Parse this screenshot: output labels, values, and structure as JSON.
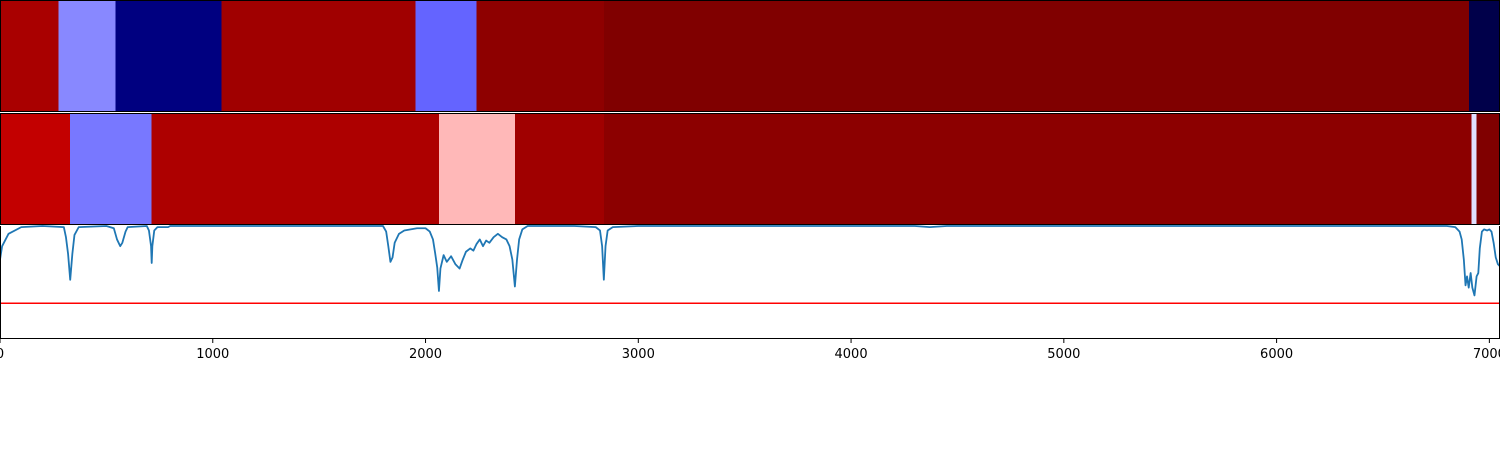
{
  "chart_data": [
    {
      "type": "heatmap",
      "xlim": [
        0,
        7050
      ],
      "segments": [
        {
          "x0": 0,
          "x1": 275,
          "color": "#a90000"
        },
        {
          "x0": 275,
          "x1": 542,
          "color": "#8888ff"
        },
        {
          "x0": 542,
          "x1": 1040,
          "color": "#000080"
        },
        {
          "x0": 1040,
          "x1": 1953,
          "color": "#a00000"
        },
        {
          "x0": 1953,
          "x1": 2240,
          "color": "#6464ff"
        },
        {
          "x0": 2240,
          "x1": 2838,
          "color": "#8e0000"
        },
        {
          "x0": 2838,
          "x1": 6905,
          "color": "#800000"
        },
        {
          "x0": 6905,
          "x1": 7050,
          "color": "#00004a"
        }
      ]
    },
    {
      "type": "heatmap",
      "xlim": [
        0,
        7050
      ],
      "segments": [
        {
          "x0": 0,
          "x1": 330,
          "color": "#c30000"
        },
        {
          "x0": 330,
          "x1": 713,
          "color": "#7878ff"
        },
        {
          "x0": 713,
          "x1": 2063,
          "color": "#ad0000"
        },
        {
          "x0": 2063,
          "x1": 2420,
          "color": "#ffb8b8"
        },
        {
          "x0": 2420,
          "x1": 2838,
          "color": "#a00000"
        },
        {
          "x0": 2838,
          "x1": 6915,
          "color": "#8c0000"
        },
        {
          "x0": 6915,
          "x1": 6940,
          "color": "#e0e0ff"
        },
        {
          "x0": 6940,
          "x1": 7050,
          "color": "#800000"
        }
      ]
    },
    {
      "type": "line",
      "xlim": [
        0,
        7050
      ],
      "ylim": [
        0,
        1
      ],
      "x_ticks": [
        0,
        1000,
        2000,
        3000,
        4000,
        5000,
        6000,
        7000
      ],
      "hline": {
        "y": 0.31,
        "color": "#ff0000"
      },
      "series": [
        {
          "color": "#1f77b4",
          "points": [
            [
              0,
              0.7
            ],
            [
              10,
              0.82
            ],
            [
              40,
              0.93
            ],
            [
              100,
              0.99
            ],
            [
              200,
              1.0
            ],
            [
              300,
              0.99
            ],
            [
              310,
              0.9
            ],
            [
              320,
              0.75
            ],
            [
              330,
              0.52
            ],
            [
              340,
              0.75
            ],
            [
              350,
              0.92
            ],
            [
              370,
              0.99
            ],
            [
              500,
              1.0
            ],
            [
              535,
              0.98
            ],
            [
              550,
              0.88
            ],
            [
              565,
              0.82
            ],
            [
              575,
              0.85
            ],
            [
              590,
              0.95
            ],
            [
              600,
              0.99
            ],
            [
              690,
              1.0
            ],
            [
              700,
              0.96
            ],
            [
              710,
              0.82
            ],
            [
              713,
              0.67
            ],
            [
              716,
              0.82
            ],
            [
              725,
              0.96
            ],
            [
              740,
              0.99
            ],
            [
              790,
              0.99
            ],
            [
              800,
              1.0
            ],
            [
              900,
              1.0
            ],
            [
              1800,
              1.0
            ],
            [
              1815,
              0.95
            ],
            [
              1825,
              0.82
            ],
            [
              1835,
              0.68
            ],
            [
              1845,
              0.72
            ],
            [
              1855,
              0.85
            ],
            [
              1875,
              0.93
            ],
            [
              1900,
              0.96
            ],
            [
              1960,
              0.98
            ],
            [
              2000,
              0.98
            ],
            [
              2020,
              0.95
            ],
            [
              2035,
              0.88
            ],
            [
              2045,
              0.76
            ],
            [
              2055,
              0.63
            ],
            [
              2063,
              0.42
            ],
            [
              2070,
              0.62
            ],
            [
              2085,
              0.74
            ],
            [
              2100,
              0.68
            ],
            [
              2120,
              0.73
            ],
            [
              2140,
              0.66
            ],
            [
              2160,
              0.62
            ],
            [
              2175,
              0.7
            ],
            [
              2190,
              0.77
            ],
            [
              2210,
              0.8
            ],
            [
              2225,
              0.78
            ],
            [
              2240,
              0.84
            ],
            [
              2255,
              0.88
            ],
            [
              2270,
              0.82
            ],
            [
              2285,
              0.87
            ],
            [
              2300,
              0.85
            ],
            [
              2320,
              0.9
            ],
            [
              2340,
              0.93
            ],
            [
              2360,
              0.9
            ],
            [
              2380,
              0.88
            ],
            [
              2395,
              0.82
            ],
            [
              2408,
              0.7
            ],
            [
              2420,
              0.46
            ],
            [
              2430,
              0.7
            ],
            [
              2440,
              0.88
            ],
            [
              2455,
              0.97
            ],
            [
              2480,
              1.0
            ],
            [
              2700,
              1.0
            ],
            [
              2800,
              0.99
            ],
            [
              2820,
              0.96
            ],
            [
              2830,
              0.82
            ],
            [
              2838,
              0.52
            ],
            [
              2846,
              0.82
            ],
            [
              2856,
              0.96
            ],
            [
              2880,
              0.99
            ],
            [
              3000,
              1.0
            ],
            [
              4300,
              1.0
            ],
            [
              4370,
              0.99
            ],
            [
              4450,
              1.0
            ],
            [
              6800,
              1.0
            ],
            [
              6840,
              0.99
            ],
            [
              6860,
              0.95
            ],
            [
              6870,
              0.88
            ],
            [
              6880,
              0.7
            ],
            [
              6888,
              0.47
            ],
            [
              6895,
              0.55
            ],
            [
              6903,
              0.45
            ],
            [
              6912,
              0.58
            ],
            [
              6920,
              0.45
            ],
            [
              6930,
              0.38
            ],
            [
              6940,
              0.55
            ],
            [
              6948,
              0.58
            ],
            [
              6955,
              0.8
            ],
            [
              6965,
              0.95
            ],
            [
              6975,
              0.97
            ],
            [
              6990,
              0.96
            ],
            [
              7000,
              0.97
            ],
            [
              7010,
              0.95
            ],
            [
              7020,
              0.85
            ],
            [
              7030,
              0.72
            ],
            [
              7040,
              0.66
            ],
            [
              7050,
              0.64
            ]
          ]
        }
      ]
    }
  ]
}
